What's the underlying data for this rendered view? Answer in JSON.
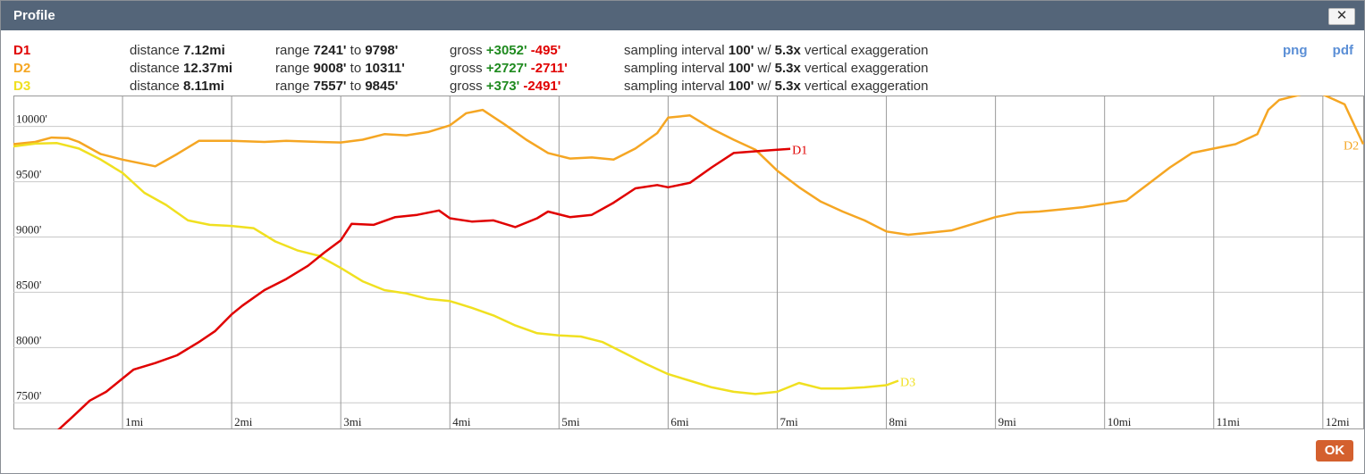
{
  "window": {
    "title": "Profile",
    "close_label": "✕",
    "ok_label": "OK"
  },
  "links": {
    "png": "png",
    "pdf": "pdf"
  },
  "profiles": [
    {
      "name": "D1",
      "color": "#e00000",
      "distance_label": "distance",
      "distance": "7.12mi",
      "range_label": "range",
      "range_min": "7241'",
      "to_label": "to",
      "range_max": "9798'",
      "gross_label": "gross",
      "gain": "+3052'",
      "loss": "-495'",
      "sampling_label": "sampling interval",
      "interval": "100'",
      "w_label": "w/",
      "exaggeration": "5.3x",
      "exag_label": "vertical exaggeration"
    },
    {
      "name": "D2",
      "color": "#f5a623",
      "distance_label": "distance",
      "distance": "12.37mi",
      "range_label": "range",
      "range_min": "9008'",
      "to_label": "to",
      "range_max": "10311'",
      "gross_label": "gross",
      "gain": "+2727'",
      "loss": "-2711'",
      "sampling_label": "sampling interval",
      "interval": "100'",
      "w_label": "w/",
      "exaggeration": "5.3x",
      "exag_label": "vertical exaggeration"
    },
    {
      "name": "D3",
      "color": "#f0e020",
      "distance_label": "distance",
      "distance": "8.11mi",
      "range_label": "range",
      "range_min": "7557'",
      "to_label": "to",
      "range_max": "9845'",
      "gross_label": "gross",
      "gain": "+373'",
      "loss": "-2491'",
      "sampling_label": "sampling interval",
      "interval": "100'",
      "w_label": "w/",
      "exaggeration": "5.3x",
      "exag_label": "vertical exaggeration"
    }
  ],
  "chart_data": {
    "type": "line",
    "xlabel": "",
    "ylabel": "",
    "xlim": [
      0,
      12.37
    ],
    "ylim": [
      7260,
      10280
    ],
    "grid": true,
    "x_ticks": [
      1,
      2,
      3,
      4,
      5,
      6,
      7,
      8,
      9,
      10,
      11,
      12
    ],
    "x_tick_labels": [
      "1mi",
      "2mi",
      "3mi",
      "4mi",
      "5mi",
      "6mi",
      "7mi",
      "8mi",
      "9mi",
      "10mi",
      "11mi",
      "12mi"
    ],
    "y_ticks": [
      7500,
      8000,
      8500,
      9000,
      9500,
      10000
    ],
    "y_tick_labels": [
      "7500'",
      "8000'",
      "8500'",
      "9000'",
      "9500'",
      "10000'"
    ],
    "series": [
      {
        "name": "D1",
        "color": "#e00000",
        "x": [
          0,
          0.2,
          0.4,
          0.55,
          0.7,
          0.85,
          1.0,
          1.1,
          1.3,
          1.5,
          1.7,
          1.85,
          2.0,
          2.1,
          2.3,
          2.5,
          2.7,
          2.85,
          3.0,
          3.1,
          3.3,
          3.5,
          3.7,
          3.9,
          4.0,
          4.2,
          4.4,
          4.6,
          4.8,
          4.9,
          5.1,
          5.3,
          5.5,
          5.7,
          5.9,
          6.0,
          6.2,
          6.4,
          6.6,
          6.8,
          7.0,
          7.12
        ],
        "y": [
          7241,
          7250,
          7245,
          7380,
          7520,
          7600,
          7720,
          7800,
          7860,
          7930,
          8050,
          8150,
          8300,
          8380,
          8520,
          8620,
          8740,
          8860,
          8970,
          9120,
          9110,
          9180,
          9200,
          9240,
          9170,
          9140,
          9150,
          9090,
          9170,
          9230,
          9180,
          9200,
          9310,
          9440,
          9470,
          9450,
          9490,
          9630,
          9760,
          9775,
          9790,
          9798
        ]
      },
      {
        "name": "D2",
        "color": "#f5a623",
        "x": [
          0,
          0.2,
          0.35,
          0.5,
          0.6,
          0.8,
          1.0,
          1.1,
          1.3,
          1.5,
          1.7,
          2.0,
          2.3,
          2.5,
          2.8,
          3.0,
          3.2,
          3.4,
          3.6,
          3.8,
          4.0,
          4.15,
          4.3,
          4.5,
          4.7,
          4.9,
          5.1,
          5.3,
          5.5,
          5.7,
          5.9,
          6.0,
          6.2,
          6.4,
          6.6,
          6.8,
          7.0,
          7.2,
          7.4,
          7.6,
          7.8,
          8.0,
          8.2,
          8.4,
          8.6,
          8.8,
          9.0,
          9.2,
          9.4,
          9.6,
          9.8,
          10.0,
          10.2,
          10.4,
          10.6,
          10.8,
          11.0,
          11.2,
          11.4,
          11.5,
          11.6,
          11.8,
          12.0,
          12.2,
          12.37
        ],
        "y": [
          9840,
          9860,
          9900,
          9895,
          9860,
          9750,
          9700,
          9680,
          9640,
          9750,
          9870,
          9870,
          9860,
          9870,
          9860,
          9855,
          9880,
          9930,
          9920,
          9950,
          10010,
          10120,
          10150,
          10020,
          9880,
          9760,
          9710,
          9720,
          9700,
          9800,
          9940,
          10080,
          10100,
          9980,
          9880,
          9790,
          9600,
          9450,
          9320,
          9230,
          9150,
          9050,
          9020,
          9040,
          9060,
          9120,
          9180,
          9220,
          9230,
          9250,
          9270,
          9300,
          9330,
          9480,
          9630,
          9760,
          9800,
          9840,
          9930,
          10150,
          10240,
          10290,
          10290,
          10200,
          9840
        ]
      },
      {
        "name": "D3",
        "color": "#f0e020",
        "x": [
          0,
          0.2,
          0.4,
          0.6,
          0.8,
          1.0,
          1.2,
          1.4,
          1.6,
          1.8,
          2.0,
          2.2,
          2.4,
          2.6,
          2.8,
          3.0,
          3.2,
          3.4,
          3.6,
          3.8,
          4.0,
          4.2,
          4.4,
          4.6,
          4.8,
          5.0,
          5.2,
          5.4,
          5.6,
          5.8,
          6.0,
          6.2,
          6.4,
          6.6,
          6.8,
          7.0,
          7.2,
          7.4,
          7.6,
          7.8,
          8.0,
          8.11
        ],
        "y": [
          9820,
          9845,
          9850,
          9800,
          9700,
          9580,
          9400,
          9290,
          9150,
          9110,
          9100,
          9080,
          8960,
          8880,
          8830,
          8720,
          8600,
          8520,
          8490,
          8440,
          8420,
          8360,
          8290,
          8200,
          8130,
          8110,
          8100,
          8050,
          7950,
          7850,
          7760,
          7700,
          7640,
          7600,
          7580,
          7600,
          7680,
          7630,
          7630,
          7640,
          7660,
          7700
        ]
      }
    ]
  }
}
